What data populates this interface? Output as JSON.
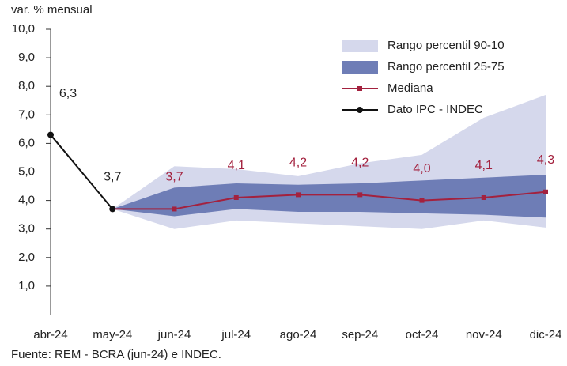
{
  "chart_data": {
    "type": "line",
    "y_label": "var. % mensual",
    "source": "Fuente: REM - BCRA (jun-24) e INDEC.",
    "categories": [
      "abr-24",
      "may-24",
      "jun-24",
      "jul-24",
      "ago-24",
      "sep-24",
      "oct-24",
      "nov-24",
      "dic-24"
    ],
    "ylim": [
      0,
      10
    ],
    "yticks": [
      {
        "value": 1,
        "label": "1,0"
      },
      {
        "value": 2,
        "label": "2,0"
      },
      {
        "value": 3,
        "label": "3,0"
      },
      {
        "value": 4,
        "label": "4,0"
      },
      {
        "value": 5,
        "label": "5,0"
      },
      {
        "value": 6,
        "label": "6,0"
      },
      {
        "value": 7,
        "label": "7,0"
      },
      {
        "value": 8,
        "label": "8,0"
      },
      {
        "value": 9,
        "label": "9,0"
      },
      {
        "value": 10,
        "label": "10,0"
      }
    ],
    "legend": "upper right",
    "series": [
      {
        "name": "Rango percentil 90-10",
        "kind": "band",
        "color": "#d5d8ec",
        "lower": [
          null,
          3.7,
          3.0,
          3.3,
          3.2,
          3.1,
          3.0,
          3.3,
          3.05
        ],
        "upper": [
          null,
          3.7,
          5.2,
          5.1,
          4.85,
          5.3,
          5.6,
          6.9,
          7.7
        ]
      },
      {
        "name": "Rango percentil 25-75",
        "kind": "band",
        "color": "#6e7db6",
        "lower": [
          null,
          3.7,
          3.45,
          3.7,
          3.6,
          3.6,
          3.55,
          3.5,
          3.4
        ],
        "upper": [
          null,
          3.7,
          4.45,
          4.6,
          4.55,
          4.6,
          4.7,
          4.8,
          4.9
        ]
      },
      {
        "name": "Mediana",
        "kind": "line",
        "marker": "square",
        "color": "#a3213e",
        "values": [
          null,
          3.7,
          3.7,
          4.1,
          4.2,
          4.2,
          4.0,
          4.1,
          4.3
        ],
        "value_labels": [
          null,
          null,
          "3,7",
          "4,1",
          "4,2",
          "4,2",
          "4,0",
          "4,1",
          "4,3"
        ]
      },
      {
        "name": "Dato IPC - INDEC",
        "kind": "line",
        "marker": "circle",
        "color": "#111111",
        "values": [
          6.3,
          3.7,
          null,
          null,
          null,
          null,
          null,
          null,
          null
        ],
        "value_labels": [
          "6,3",
          "3,7",
          null,
          null,
          null,
          null,
          null,
          null,
          null
        ]
      }
    ]
  }
}
